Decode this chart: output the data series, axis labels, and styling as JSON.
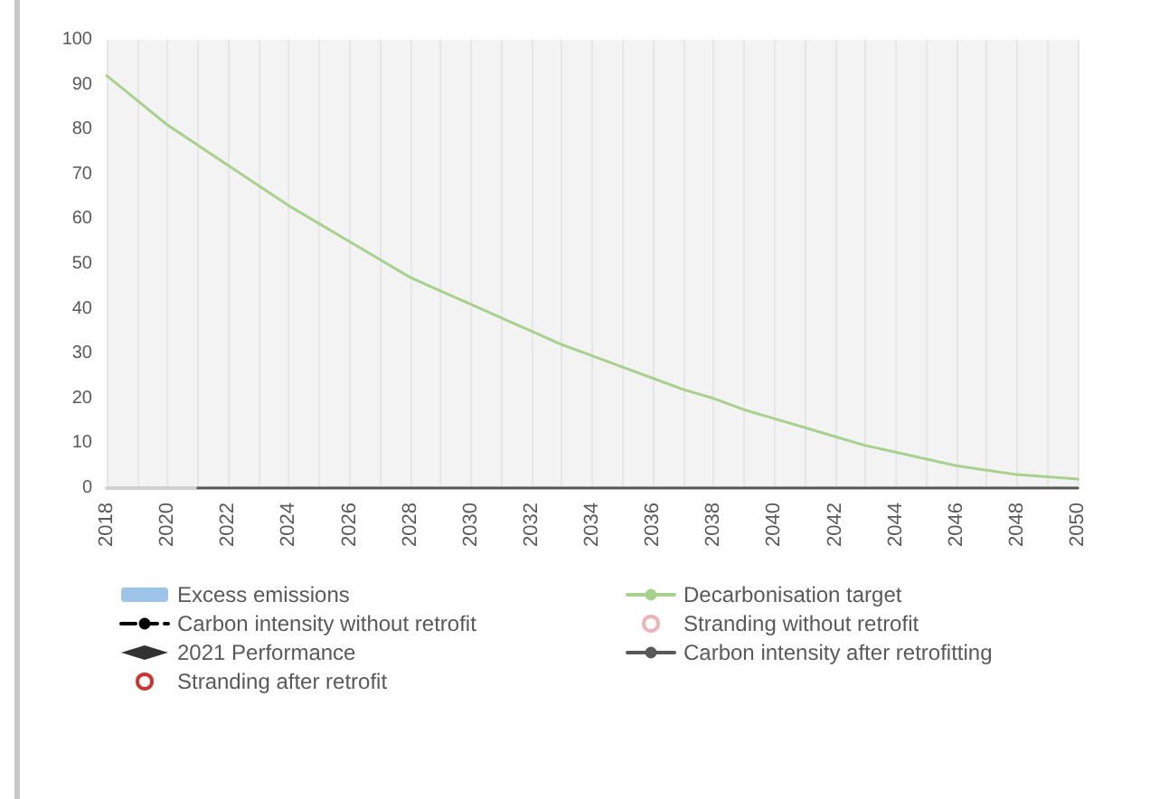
{
  "chart_data": {
    "type": "line",
    "categories": [
      "2018",
      null,
      "2020",
      null,
      "2022",
      null,
      "2024",
      null,
      "2026",
      null,
      "2028",
      null,
      "2030",
      null,
      "2032",
      null,
      "2034",
      null,
      "2036",
      null,
      "2038",
      null,
      "2040",
      null,
      "2042",
      null,
      "2044",
      null,
      "2046",
      null,
      "2048",
      null,
      "2050"
    ],
    "ylim": [
      0,
      100
    ],
    "yticks": [
      0,
      10,
      20,
      30,
      40,
      50,
      60,
      70,
      80,
      90,
      100
    ],
    "grid": "x",
    "legend": "bottom",
    "series": [
      {
        "name": "Excess emissions",
        "type": "bar",
        "color": "#9dc3e6",
        "values": [
          null,
          null,
          null,
          null,
          null,
          null,
          null,
          null,
          null,
          null,
          null,
          null,
          null,
          null,
          null,
          null,
          null,
          null,
          null,
          null,
          null,
          null,
          null,
          null,
          null,
          null,
          null,
          null,
          null,
          null,
          null,
          null,
          null
        ]
      },
      {
        "name": "Decarbonisation target",
        "color": "#a9d18e",
        "line_style": "solid",
        "marker": "none",
        "values": [
          92,
          86.5,
          81,
          76.5,
          72,
          67.5,
          63,
          59,
          55,
          51,
          47,
          44,
          41,
          38,
          35,
          32,
          29.5,
          27,
          24.5,
          22,
          20,
          17.5,
          15.5,
          13.5,
          11.5,
          9.5,
          8,
          6.5,
          5,
          4,
          3,
          2.5,
          2
        ]
      },
      {
        "name": "Carbon intensity without retrofit",
        "color": "#000000",
        "line_style": "dashed",
        "marker": "none",
        "values": [
          null,
          null,
          null,
          null,
          null,
          null,
          null,
          null,
          null,
          null,
          null,
          null,
          null,
          null,
          null,
          null,
          null,
          null,
          null,
          null,
          null,
          null,
          null,
          null,
          null,
          null,
          null,
          null,
          null,
          null,
          null,
          null,
          null
        ]
      },
      {
        "name": "Stranding without retrofit",
        "type": "scatter",
        "color": "#e8a0a8",
        "marker": "circle",
        "values": [
          null,
          null,
          null,
          null,
          null,
          null,
          null,
          null,
          null,
          null,
          null,
          null,
          null,
          null,
          null,
          null,
          null,
          null,
          null,
          null,
          null,
          null,
          null,
          null,
          null,
          null,
          null,
          null,
          null,
          null,
          null,
          null,
          null
        ]
      },
      {
        "name": "2021 Performance",
        "type": "scatter",
        "color": "#000000",
        "marker": "diamond",
        "values": [
          null,
          null,
          null,
          null,
          null,
          null,
          null,
          null,
          null,
          null,
          null,
          null,
          null,
          null,
          null,
          null,
          null,
          null,
          null,
          null,
          null,
          null,
          null,
          null,
          null,
          null,
          null,
          null,
          null,
          null,
          null,
          null,
          null
        ]
      },
      {
        "name": "Carbon intensity after retrofitting",
        "color": "#595959",
        "line_style": "solid",
        "marker": "none",
        "values": [
          null,
          null,
          null,
          0,
          0,
          0,
          0,
          0,
          0,
          0,
          0,
          0,
          0,
          0,
          0,
          0,
          0,
          0,
          0,
          0,
          0,
          0,
          0,
          0,
          0,
          0,
          0,
          0,
          0,
          0,
          0,
          0,
          0
        ]
      },
      {
        "name": "Stranding after retrofit",
        "type": "scatter",
        "color": "#c00000",
        "marker": "circle",
        "values": [
          null,
          null,
          null,
          null,
          null,
          null,
          null,
          null,
          null,
          null,
          null,
          null,
          null,
          null,
          null,
          null,
          null,
          null,
          null,
          null,
          null,
          null,
          null,
          null,
          null,
          null,
          null,
          null,
          null,
          null,
          null,
          null,
          null
        ]
      }
    ]
  }
}
